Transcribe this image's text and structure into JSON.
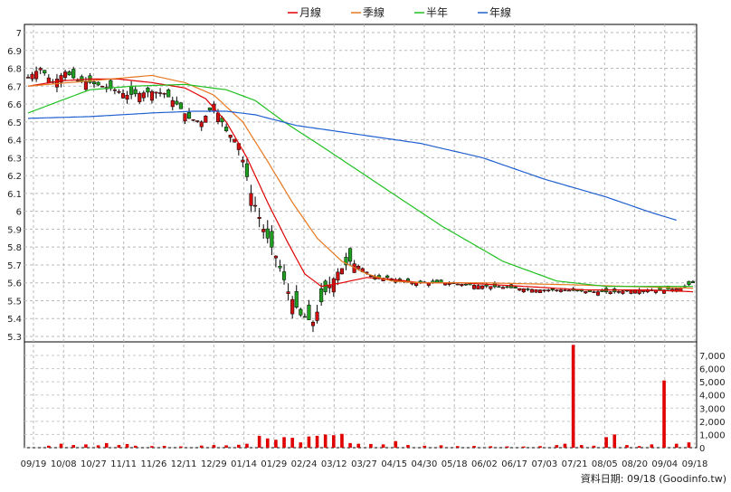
{
  "chart_data": {
    "type": "candlestick",
    "legend": [
      {
        "name": "月線",
        "color": "#e00000"
      },
      {
        "name": "季線",
        "color": "#e87820"
      },
      {
        "name": "半年",
        "color": "#20c020"
      },
      {
        "name": "年線",
        "color": "#2060d0"
      }
    ],
    "x_ticks": [
      "09/19",
      "10/08",
      "10/27",
      "11/11",
      "11/26",
      "12/11",
      "12/29",
      "01/14",
      "01/29",
      "02/24",
      "03/12",
      "03/27",
      "04/15",
      "04/30",
      "05/18",
      "06/02",
      "06/17",
      "07/03",
      "07/21",
      "08/05",
      "08/20",
      "09/04",
      "09/18"
    ],
    "price_axis": {
      "ticks": [
        "5.3",
        "5.4",
        "5.5",
        "5.6",
        "5.7",
        "5.8",
        "5.9",
        "6",
        "6.1",
        "6.2",
        "6.3",
        "6.4",
        "6.5",
        "6.6",
        "6.7",
        "6.8",
        "6.9",
        "7"
      ],
      "range": [
        5.3,
        7.0
      ]
    },
    "volume_axis": {
      "ticks": [
        "0",
        "1,000",
        "2,000",
        "3,000",
        "4,000",
        "5,000",
        "6,000",
        "7,000"
      ],
      "range": [
        0,
        7000
      ]
    },
    "footer": "資料日期: 09/18  (Goodinfo.tw)",
    "price_anchors": [
      [
        0,
        6.75
      ],
      [
        3,
        6.8
      ],
      [
        6,
        6.72
      ],
      [
        9,
        6.78
      ],
      [
        12,
        6.73
      ],
      [
        15,
        6.72
      ],
      [
        18,
        6.7
      ],
      [
        21,
        6.68
      ],
      [
        24,
        6.65
      ],
      [
        27,
        6.66
      ],
      [
        30,
        6.67
      ],
      [
        33,
        6.66
      ],
      [
        36,
        6.6
      ],
      [
        39,
        6.52
      ],
      [
        42,
        6.5
      ],
      [
        45,
        6.6
      ],
      [
        48,
        6.45
      ],
      [
        51,
        6.38
      ],
      [
        54,
        6.1
      ],
      [
        57,
        5.9
      ],
      [
        60,
        5.75
      ],
      [
        63,
        5.55
      ],
      [
        66,
        5.42
      ],
      [
        69,
        5.38
      ],
      [
        72,
        5.55
      ],
      [
        75,
        5.66
      ],
      [
        78,
        5.72
      ],
      [
        81,
        5.68
      ],
      [
        84,
        5.62
      ],
      [
        87,
        5.63
      ],
      [
        90,
        5.61
      ],
      [
        93,
        5.6
      ],
      [
        100,
        5.6
      ],
      [
        106,
        5.59
      ],
      [
        112,
        5.58
      ],
      [
        118,
        5.57
      ],
      [
        124,
        5.56
      ],
      [
        130,
        5.56
      ],
      [
        136,
        5.55
      ],
      [
        142,
        5.55
      ],
      [
        148,
        5.56
      ],
      [
        154,
        5.56
      ],
      [
        158,
        5.57
      ],
      [
        161,
        5.6
      ]
    ],
    "moving_averages": {
      "月線": [
        [
          0,
          6.7
        ],
        [
          8,
          6.73
        ],
        [
          15,
          6.74
        ],
        [
          22,
          6.74
        ],
        [
          30,
          6.72
        ],
        [
          38,
          6.69
        ],
        [
          43,
          6.63
        ],
        [
          48,
          6.5
        ],
        [
          53,
          6.3
        ],
        [
          58,
          6.05
        ],
        [
          63,
          5.82
        ],
        [
          67,
          5.65
        ],
        [
          71,
          5.58
        ],
        [
          76,
          5.6
        ],
        [
          82,
          5.63
        ],
        [
          88,
          5.62
        ],
        [
          95,
          5.6
        ],
        [
          105,
          5.6
        ],
        [
          120,
          5.58
        ],
        [
          135,
          5.56
        ],
        [
          150,
          5.56
        ],
        [
          161,
          5.55
        ]
      ],
      "季線": [
        [
          0,
          6.7
        ],
        [
          10,
          6.72
        ],
        [
          20,
          6.74
        ],
        [
          30,
          6.76
        ],
        [
          38,
          6.72
        ],
        [
          45,
          6.65
        ],
        [
          52,
          6.5
        ],
        [
          58,
          6.28
        ],
        [
          64,
          6.05
        ],
        [
          70,
          5.85
        ],
        [
          76,
          5.72
        ],
        [
          82,
          5.65
        ],
        [
          88,
          5.61
        ],
        [
          95,
          5.6
        ],
        [
          110,
          5.6
        ],
        [
          130,
          5.59
        ],
        [
          145,
          5.58
        ],
        [
          161,
          5.57
        ]
      ],
      "半年": [
        [
          0,
          6.55
        ],
        [
          8,
          6.62
        ],
        [
          15,
          6.68
        ],
        [
          25,
          6.7
        ],
        [
          38,
          6.71
        ],
        [
          48,
          6.68
        ],
        [
          55,
          6.62
        ],
        [
          62,
          6.5
        ],
        [
          72,
          6.35
        ],
        [
          85,
          6.15
        ],
        [
          100,
          5.92
        ],
        [
          115,
          5.72
        ],
        [
          128,
          5.61
        ],
        [
          140,
          5.58
        ],
        [
          150,
          5.58
        ],
        [
          161,
          5.58
        ]
      ],
      "年線": [
        [
          0,
          6.52
        ],
        [
          15,
          6.53
        ],
        [
          30,
          6.55
        ],
        [
          40,
          6.56
        ],
        [
          48,
          6.56
        ],
        [
          55,
          6.54
        ],
        [
          65,
          6.48
        ],
        [
          80,
          6.43
        ],
        [
          95,
          6.38
        ],
        [
          110,
          6.3
        ],
        [
          125,
          6.18
        ],
        [
          140,
          6.08
        ],
        [
          150,
          6.0
        ],
        [
          157,
          5.95
        ]
      ]
    },
    "volume_bars": [
      [
        5,
        150
      ],
      [
        8,
        300
      ],
      [
        11,
        200
      ],
      [
        14,
        250
      ],
      [
        17,
        180
      ],
      [
        19,
        350
      ],
      [
        22,
        200
      ],
      [
        24,
        280
      ],
      [
        26,
        150
      ],
      [
        30,
        120
      ],
      [
        33,
        140
      ],
      [
        37,
        100
      ],
      [
        42,
        160
      ],
      [
        45,
        200
      ],
      [
        48,
        180
      ],
      [
        51,
        220
      ],
      [
        53,
        300
      ],
      [
        56,
        900
      ],
      [
        58,
        700
      ],
      [
        60,
        600
      ],
      [
        62,
        800
      ],
      [
        64,
        750
      ],
      [
        66,
        400
      ],
      [
        68,
        850
      ],
      [
        70,
        900
      ],
      [
        72,
        1000
      ],
      [
        74,
        950
      ],
      [
        76,
        1050
      ],
      [
        78,
        350
      ],
      [
        80,
        300
      ],
      [
        83,
        280
      ],
      [
        86,
        250
      ],
      [
        89,
        500
      ],
      [
        92,
        200
      ],
      [
        96,
        150
      ],
      [
        100,
        180
      ],
      [
        104,
        120
      ],
      [
        108,
        130
      ],
      [
        112,
        110
      ],
      [
        116,
        100
      ],
      [
        120,
        90
      ],
      [
        124,
        120
      ],
      [
        128,
        200
      ],
      [
        130,
        300
      ],
      [
        132,
        7800
      ],
      [
        134,
        200
      ],
      [
        137,
        150
      ],
      [
        140,
        800
      ],
      [
        142,
        1000
      ],
      [
        145,
        200
      ],
      [
        148,
        120
      ],
      [
        151,
        250
      ],
      [
        154,
        5100
      ],
      [
        157,
        300
      ],
      [
        160,
        400
      ]
    ]
  }
}
